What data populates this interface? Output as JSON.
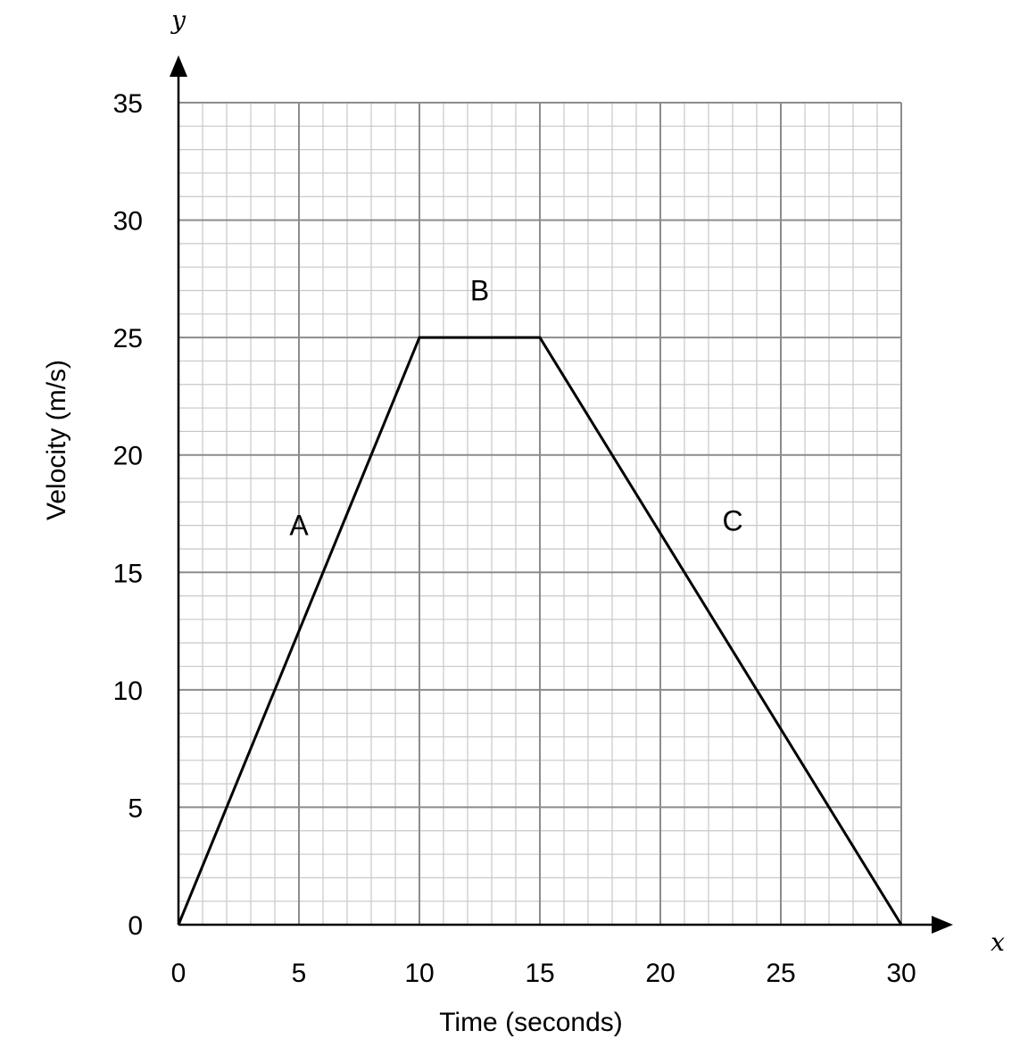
{
  "chart_data": {
    "type": "line",
    "title": "",
    "xlabel": "Time (seconds)",
    "ylabel": "Velocity (m/s)",
    "x_axis_variable": "x",
    "y_axis_variable": "y",
    "xlim": [
      0,
      30
    ],
    "ylim": [
      0,
      35
    ],
    "x_ticks": [
      0,
      5,
      10,
      15,
      20,
      25,
      30
    ],
    "y_ticks": [
      0,
      5,
      10,
      15,
      20,
      25,
      30,
      35
    ],
    "x_tick_labels": [
      "0",
      "5",
      "10",
      "15",
      "20",
      "25",
      "30"
    ],
    "y_tick_labels": [
      "0",
      "5",
      "10",
      "15",
      "20",
      "25",
      "30",
      "35"
    ],
    "grid": true,
    "minor_grid_step": 1,
    "major_grid_step": 5,
    "series": [
      {
        "x": [
          0,
          10,
          15,
          30
        ],
        "y": [
          0,
          25,
          25,
          0
        ]
      }
    ],
    "annotations": [
      {
        "text": "A",
        "x": 5,
        "y": 17
      },
      {
        "text": "B",
        "x": 12.5,
        "y": 27
      },
      {
        "text": "C",
        "x": 23,
        "y": 17.2
      }
    ],
    "colors": {
      "line": "#000000",
      "major_grid": "#8c8c8c",
      "minor_grid": "#c8c8c8",
      "axes": "#000000"
    }
  }
}
